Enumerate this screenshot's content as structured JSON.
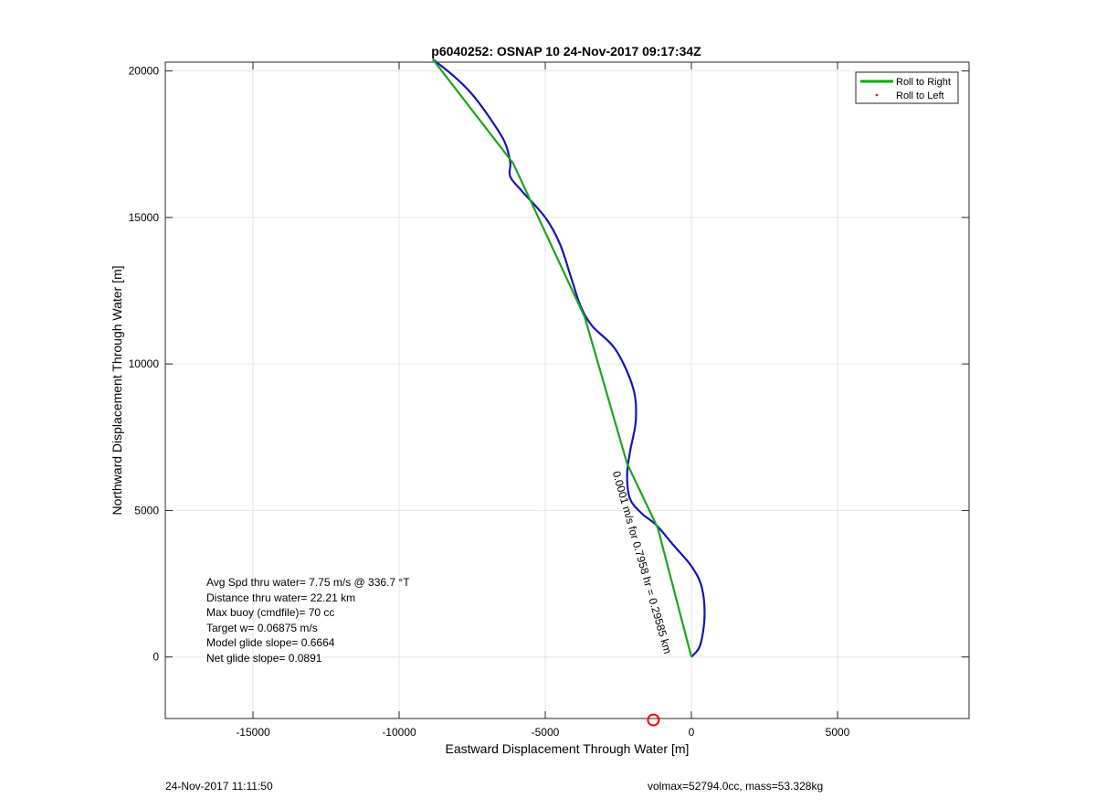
{
  "chart_data": {
    "type": "line",
    "title": "p6040252: OSNAP 10 24-Nov-2017 09:17:34Z",
    "xlabel": "Eastward Displacement Through Water [m]",
    "ylabel": "Northward Displacement Through Water [m]",
    "xlim": [
      -18000,
      9500
    ],
    "ylim": [
      -2100,
      20300
    ],
    "xticks": [
      -15000,
      -10000,
      -5000,
      0,
      5000
    ],
    "yticks": [
      0,
      5000,
      10000,
      15000,
      20000
    ],
    "xtick_labels": [
      "-15000",
      "-10000",
      "-5000",
      "0",
      "5000"
    ],
    "ytick_labels": [
      "0",
      "5000",
      "10000",
      "15000",
      "20000"
    ],
    "grid": true,
    "legend_position": "top-right",
    "legend": [
      {
        "label": "Roll to Right",
        "color": "#00aa00",
        "marker": "line"
      },
      {
        "label": "Roll to Left",
        "color": "#ff0000",
        "marker": "dot"
      }
    ],
    "series": [
      {
        "name": "Roll to Right",
        "color": "#1ba51b",
        "points": [
          [
            0,
            0
          ],
          [
            -1150,
            4400
          ],
          [
            -1150,
            4400
          ],
          [
            -2200,
            6600
          ],
          [
            -3650,
            11600
          ],
          [
            -3650,
            11600
          ],
          [
            -6100,
            16850
          ],
          [
            -6100,
            16850
          ],
          [
            -8850,
            20400
          ]
        ]
      },
      {
        "color": "#1515b4",
        "points": [
          [
            0,
            0
          ],
          [
            300,
            400
          ],
          [
            450,
            1400
          ],
          [
            350,
            2400
          ],
          [
            0,
            3100
          ],
          [
            -600,
            3800
          ],
          [
            -1200,
            4500
          ],
          [
            -1700,
            4900
          ],
          [
            -2100,
            5400
          ],
          [
            -2200,
            6200
          ],
          [
            -2100,
            7000
          ],
          [
            -1900,
            8100
          ],
          [
            -2000,
            9200
          ],
          [
            -2600,
            10500
          ],
          [
            -3400,
            11300
          ],
          [
            -3800,
            12000
          ],
          [
            -4100,
            12900
          ],
          [
            -4500,
            14100
          ],
          [
            -5000,
            15000
          ],
          [
            -5800,
            15900
          ],
          [
            -6200,
            16400
          ],
          [
            -6200,
            16900
          ],
          [
            -6400,
            17600
          ],
          [
            -6900,
            18400
          ],
          [
            -7500,
            19200
          ],
          [
            -8100,
            19800
          ],
          [
            -8850,
            20400
          ]
        ]
      }
    ],
    "annotations": {
      "rotated_label": "0.0001 m/s for 0.7958 hr = 0.29585 km",
      "target_marker": {
        "x": -1300,
        "y": -2150,
        "color": "#ff0000"
      }
    },
    "stats_lines": [
      "Avg Spd thru water=  7.75 m/s @ 336.7 °T",
      "Distance thru water= 22.21 km",
      "Max buoy (cmdfile)= 70 cc",
      "Target w= 0.06875 m/s",
      "Model glide slope= 0.6664",
      "Net glide slope= 0.0891"
    ]
  },
  "footer": {
    "left": "24-Nov-2017 11:11:50",
    "right": "volmax=52794.0cc, mass=53.328kg"
  }
}
